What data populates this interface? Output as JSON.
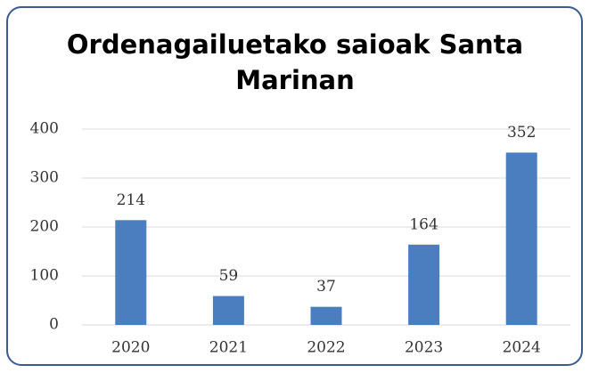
{
  "chart_data": {
    "type": "bar",
    "title": "Ordenagailuetako saioak Santa Marinan",
    "categories": [
      "2020",
      "2021",
      "2022",
      "2023",
      "2024"
    ],
    "values": [
      214,
      59,
      37,
      164,
      352
    ],
    "color": "#4a7ebf",
    "ylim": [
      0,
      400
    ],
    "yticks": [
      0,
      100,
      200,
      300,
      400
    ],
    "grid": true
  }
}
